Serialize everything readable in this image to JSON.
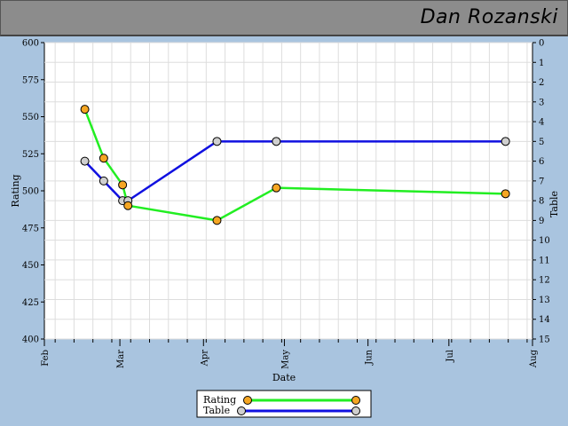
{
  "header": {
    "name": "Dan Rozanski"
  },
  "colors": {
    "rating_line": "#22ee22",
    "table_line": "#1010e0",
    "rating_marker": "#f5a623",
    "table_marker": "#cfcfcf",
    "plot_bg": "#ffffff",
    "page_bg": "#a9c4df",
    "grid": "#dddddd"
  },
  "chart_data": {
    "type": "line",
    "xlabel": "Date",
    "ylabel_left": "Rating",
    "ylabel_right": "Table",
    "x_months": [
      "Feb",
      "Mar",
      "Apr",
      "May",
      "Jun",
      "Jul",
      "Aug"
    ],
    "xlim": [
      "2023-02-01",
      "2023-08-01"
    ],
    "ylim_left": [
      400,
      600
    ],
    "yticks_left": [
      400,
      425,
      450,
      475,
      500,
      525,
      550,
      575,
      600
    ],
    "ylim_right": [
      15,
      0
    ],
    "yticks_right": [
      0,
      1,
      2,
      3,
      4,
      5,
      6,
      7,
      8,
      9,
      10,
      11,
      12,
      13,
      14,
      15
    ],
    "series": [
      {
        "name": "Rating",
        "axis": "left",
        "points": [
          {
            "x": "2023-02-16",
            "y": 555
          },
          {
            "x": "2023-02-23",
            "y": 522
          },
          {
            "x": "2023-03-02",
            "y": 504
          },
          {
            "x": "2023-03-04",
            "y": 490
          },
          {
            "x": "2023-04-06",
            "y": 480
          },
          {
            "x": "2023-04-28",
            "y": 502
          },
          {
            "x": "2023-07-22",
            "y": 498
          }
        ]
      },
      {
        "name": "Table",
        "axis": "right",
        "points": [
          {
            "x": "2023-02-16",
            "y": 6
          },
          {
            "x": "2023-02-23",
            "y": 7
          },
          {
            "x": "2023-03-02",
            "y": 8
          },
          {
            "x": "2023-03-04",
            "y": 8
          },
          {
            "x": "2023-04-06",
            "y": 5
          },
          {
            "x": "2023-04-28",
            "y": 5
          },
          {
            "x": "2023-07-22",
            "y": 5
          }
        ]
      }
    ],
    "legend": {
      "placement": "bottom-center",
      "entries": [
        "Rating",
        "Table"
      ]
    },
    "grid": true
  }
}
